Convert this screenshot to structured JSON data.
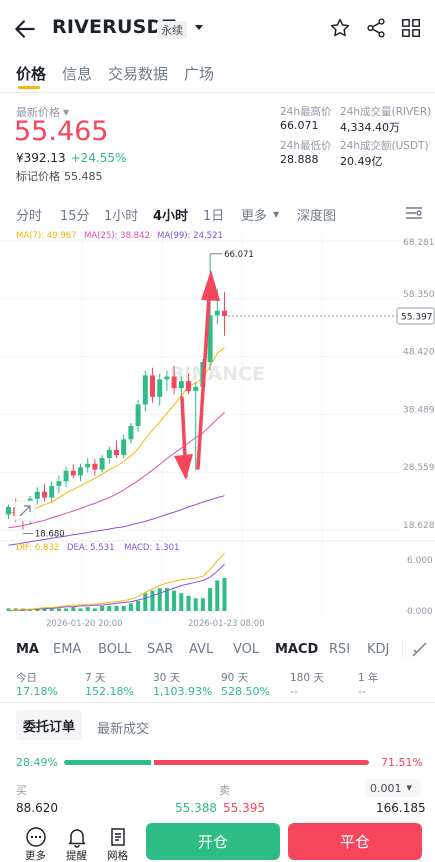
{
  "header": {
    "symbol": "RIVERUSDT",
    "badge": "永续",
    "icons": [
      "back-arrow-icon",
      "chevron-down-icon",
      "star-icon",
      "share-icon",
      "grid-icon"
    ]
  },
  "tabs": [
    "价格",
    "信息",
    "交易数据",
    "广场"
  ],
  "price": {
    "label": "最新价格",
    "last": "55.465",
    "cny": "¥392.13",
    "change": "+24.55%",
    "mark_label": "标记价格",
    "mark_value": "55.485"
  },
  "stats": {
    "high_label": "24h最高价",
    "high": "66.071",
    "vol_river_label": "24h成交量(RIVER)",
    "vol_river": "4,334.40万",
    "low_label": "24h最低价",
    "low": "28.888",
    "vol_usdt_label": "24h成交额(USDT)",
    "vol_usdt": "20.49亿"
  },
  "intervals": [
    "分时",
    "15分",
    "1小时",
    "4小时",
    "1日",
    "更多",
    "深度图"
  ],
  "active_interval": "4小时",
  "chart": {
    "ma_labels": [
      "MA(7): 49.967",
      "MA(25): 38.842",
      "MA(99): 24.521"
    ],
    "price_axis": [
      "68.281",
      "58.350",
      "48.420",
      "38.489",
      "28.559",
      "18.628"
    ],
    "current_price_tag": "55.397",
    "high_marker": "66.071",
    "low_marker": "18.680",
    "watermark": "BINANCE",
    "macd_labels": [
      "DIF: 6.832",
      "DEA: 5.531",
      "MACD: 1.301"
    ],
    "macd_axis": [
      "6.000",
      "0.000"
    ],
    "dates": [
      "2026-01-20 20:00",
      "2026-01-23 08:00"
    ],
    "colors": {
      "up": "#2ebd85",
      "down": "#f6465d",
      "ma7": "#f0b90b",
      "ma25": "#d94fb5",
      "ma99": "#8e4fd9"
    }
  },
  "chart_data": {
    "type": "candlestick",
    "interval": "4h",
    "x": [
      "2026-01-20 20:00",
      "2026-01-23 08:00"
    ],
    "candles": [
      {
        "o": 21.3,
        "h": 23.0,
        "l": 20.5,
        "c": 22.6
      },
      {
        "o": 22.6,
        "h": 24.0,
        "l": 20.0,
        "c": 21.0
      },
      {
        "o": 21.0,
        "h": 23.5,
        "l": 18.7,
        "c": 20.2
      },
      {
        "o": 20.2,
        "h": 24.5,
        "l": 19.5,
        "c": 24.0
      },
      {
        "o": 24.0,
        "h": 26.0,
        "l": 23.0,
        "c": 25.2
      },
      {
        "o": 25.2,
        "h": 26.5,
        "l": 23.5,
        "c": 24.2
      },
      {
        "o": 24.2,
        "h": 27.0,
        "l": 23.5,
        "c": 26.2
      },
      {
        "o": 26.2,
        "h": 28.0,
        "l": 25.0,
        "c": 27.0
      },
      {
        "o": 27.0,
        "h": 29.5,
        "l": 26.0,
        "c": 28.8
      },
      {
        "o": 28.8,
        "h": 30.0,
        "l": 27.5,
        "c": 28.0
      },
      {
        "o": 28.0,
        "h": 30.0,
        "l": 27.0,
        "c": 29.4
      },
      {
        "o": 29.4,
        "h": 31.0,
        "l": 28.5,
        "c": 30.0
      },
      {
        "o": 30.0,
        "h": 30.8,
        "l": 28.0,
        "c": 29.0
      },
      {
        "o": 29.0,
        "h": 31.5,
        "l": 28.5,
        "c": 31.0
      },
      {
        "o": 31.0,
        "h": 33.0,
        "l": 30.0,
        "c": 32.4
      },
      {
        "o": 32.4,
        "h": 34.0,
        "l": 31.0,
        "c": 31.5
      },
      {
        "o": 31.5,
        "h": 35.0,
        "l": 31.0,
        "c": 34.2
      },
      {
        "o": 34.2,
        "h": 37.0,
        "l": 33.5,
        "c": 36.5
      },
      {
        "o": 36.5,
        "h": 41.0,
        "l": 35.5,
        "c": 40.2
      },
      {
        "o": 40.2,
        "h": 46.0,
        "l": 39.0,
        "c": 45.2
      },
      {
        "o": 45.2,
        "h": 46.5,
        "l": 40.5,
        "c": 41.5
      },
      {
        "o": 41.5,
        "h": 45.5,
        "l": 40.0,
        "c": 44.5
      },
      {
        "o": 44.5,
        "h": 46.0,
        "l": 42.5,
        "c": 45.0
      },
      {
        "o": 45.0,
        "h": 46.8,
        "l": 42.0,
        "c": 43.0
      },
      {
        "o": 43.0,
        "h": 45.0,
        "l": 41.0,
        "c": 44.2
      },
      {
        "o": 44.2,
        "h": 45.5,
        "l": 42.0,
        "c": 42.5
      },
      {
        "o": 42.5,
        "h": 44.0,
        "l": 28.9,
        "c": 43.2
      },
      {
        "o": 43.2,
        "h": 48.0,
        "l": 42.0,
        "c": 47.5
      },
      {
        "o": 47.5,
        "h": 66.07,
        "l": 46.0,
        "c": 55.5
      },
      {
        "o": 55.5,
        "h": 60.0,
        "l": 54.0,
        "c": 56.3
      },
      {
        "o": 56.3,
        "h": 59.5,
        "l": 52.0,
        "c": 55.4
      }
    ],
    "ylim": [
      18.628,
      68.281
    ],
    "ma7": [
      21.5,
      21.7,
      21.6,
      22.0,
      22.5,
      23.0,
      23.4,
      24.2,
      25.0,
      25.6,
      26.2,
      26.9,
      27.5,
      28.2,
      29.0,
      29.6,
      30.4,
      31.4,
      32.6,
      34.3,
      35.8,
      37.2,
      38.7,
      40.1,
      41.7,
      43.3,
      43.9,
      44.8,
      46.8,
      49.0,
      49.97
    ],
    "ma25": [
      19.0,
      19.2,
      19.4,
      19.7,
      20.0,
      20.3,
      20.7,
      21.1,
      21.5,
      21.9,
      22.3,
      22.8,
      23.2,
      23.7,
      24.2,
      24.8,
      25.5,
      26.3,
      27.1,
      28.0,
      28.9,
      29.9,
      30.9,
      31.8,
      32.7,
      33.6,
      34.5,
      35.3,
      36.5,
      37.7,
      38.84
    ],
    "ma99": [
      16.0,
      16.2,
      16.4,
      16.6,
      16.8,
      17.0,
      17.2,
      17.4,
      17.6,
      17.8,
      18.0,
      18.2,
      18.4,
      18.6,
      18.8,
      19.0,
      19.2,
      19.5,
      19.8,
      20.1,
      20.5,
      20.9,
      21.3,
      21.7,
      22.1,
      22.6,
      23.0,
      23.4,
      23.8,
      24.2,
      24.52
    ],
    "macd": {
      "dif": [
        0.1,
        0.1,
        0.2,
        0.2,
        0.3,
        0.4,
        0.4,
        0.5,
        0.6,
        0.7,
        0.7,
        0.8,
        0.8,
        0.9,
        1.0,
        1.1,
        1.2,
        1.4,
        1.7,
        2.2,
        2.6,
        3.0,
        3.3,
        3.5,
        3.7,
        3.8,
        3.9,
        4.1,
        4.9,
        5.9,
        6.832
      ],
      "dea": [
        0.0,
        0.1,
        0.1,
        0.2,
        0.2,
        0.3,
        0.3,
        0.4,
        0.5,
        0.5,
        0.6,
        0.6,
        0.7,
        0.7,
        0.8,
        0.9,
        1.0,
        1.1,
        1.3,
        1.5,
        1.8,
        2.1,
        2.4,
        2.7,
        3.0,
        3.2,
        3.4,
        3.6,
        4.0,
        4.7,
        5.531
      ],
      "hist": [
        0.1,
        0.1,
        0.1,
        0.05,
        0.1,
        0.1,
        0.1,
        0.1,
        0.1,
        0.15,
        0.1,
        0.15,
        0.1,
        0.2,
        0.2,
        0.2,
        0.2,
        0.3,
        0.4,
        0.7,
        0.8,
        0.9,
        0.9,
        0.8,
        0.7,
        0.6,
        0.5,
        0.5,
        0.9,
        1.2,
        1.301
      ]
    }
  },
  "indicators": [
    "MA",
    "EMA",
    "BOLL",
    "SAR",
    "AVL",
    "VOL",
    "MACD",
    "RSI",
    "KDJ"
  ],
  "active_indicator_main": "MA",
  "active_indicator_sub": "MACD",
  "performance": [
    {
      "label": "今日",
      "value": "17.18%"
    },
    {
      "label": "7 天",
      "value": "152.18%"
    },
    {
      "label": "30 天",
      "value": "1,103.93%"
    },
    {
      "label": "90 天",
      "value": "528.50%"
    },
    {
      "label": "180 天",
      "value": "--"
    },
    {
      "label": "1 年",
      "value": "--"
    }
  ],
  "orderbook": {
    "tab_orders": "委托订单",
    "tab_trades": "最新成交",
    "buy_pct": "28.49%",
    "sell_pct": "71.51%",
    "buy_ratio": 0.2849,
    "buy_label": "买",
    "sell_label": "卖",
    "precision": "0.001",
    "bid_qty": "88.620",
    "bid_price": "55.388",
    "ask_price": "55.395",
    "ask_qty": "166.185"
  },
  "bottom": {
    "more": "更多",
    "alert": "提醒",
    "grid": "网格",
    "open": "开仓",
    "close": "平仓"
  }
}
